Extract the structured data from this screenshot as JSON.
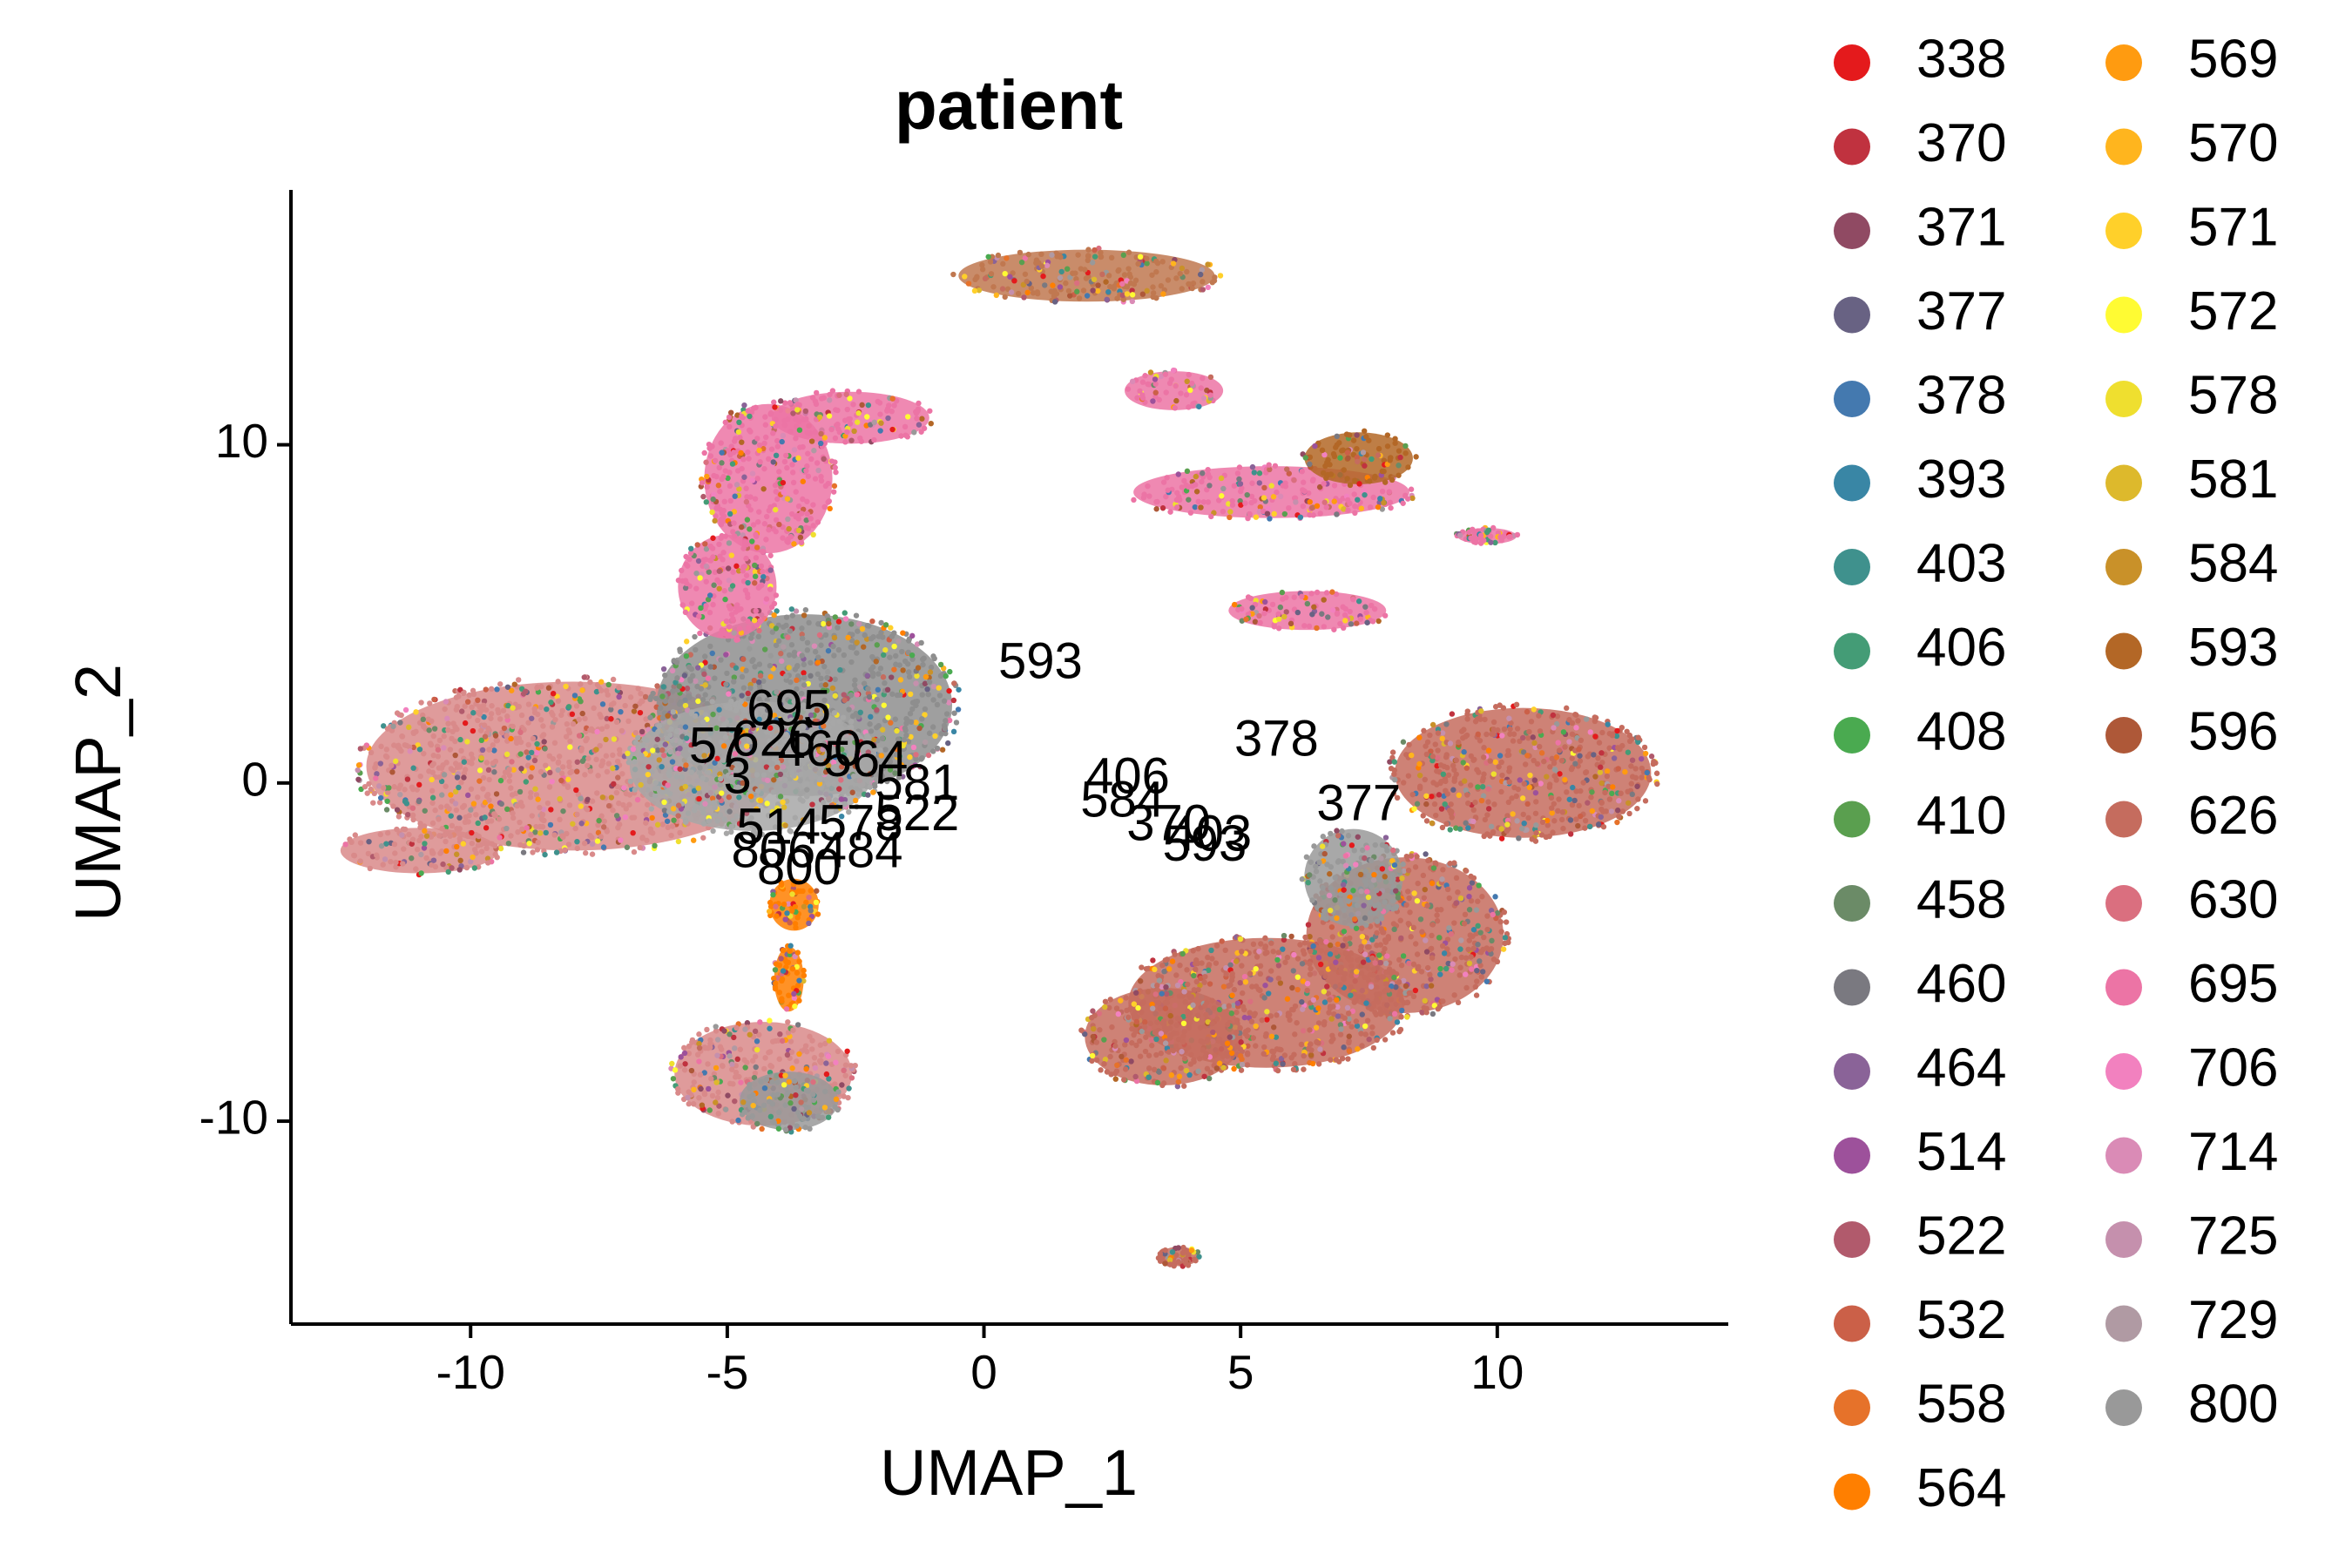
{
  "chart_data": {
    "type": "scatter",
    "title": "patient",
    "xlabel": "UMAP_1",
    "ylabel": "UMAP_2",
    "xlim": [
      -13.5,
      14.5
    ],
    "ylim": [
      -16,
      18
    ],
    "xticks": [
      -10,
      -5,
      0,
      5,
      10
    ],
    "xtick_labels": [
      "-10",
      "-5",
      "0",
      "5",
      "10"
    ],
    "yticks": [
      -10,
      0,
      10
    ],
    "ytick_labels": [
      "-10",
      "0",
      "10"
    ],
    "grid": false,
    "legend_position": "right",
    "legend_columns": 2,
    "series": [
      {
        "name": "338",
        "color": "#E41A1C"
      },
      {
        "name": "370",
        "color": "#C0323F"
      },
      {
        "name": "371",
        "color": "#904A63"
      },
      {
        "name": "377",
        "color": "#686283"
      },
      {
        "name": "378",
        "color": "#4479AF"
      },
      {
        "name": "393",
        "color": "#3986A5"
      },
      {
        "name": "403",
        "color": "#3F918D"
      },
      {
        "name": "406",
        "color": "#449C76"
      },
      {
        "name": "408",
        "color": "#4AAA50"
      },
      {
        "name": "410",
        "color": "#5A9F4F"
      },
      {
        "name": "458",
        "color": "#6B8B67"
      },
      {
        "name": "460",
        "color": "#7A7980"
      },
      {
        "name": "464",
        "color": "#8A6398"
      },
      {
        "name": "514",
        "color": "#9D519B"
      },
      {
        "name": "522",
        "color": "#B15A6C"
      },
      {
        "name": "532",
        "color": "#CB6048"
      },
      {
        "name": "558",
        "color": "#E6722A"
      },
      {
        "name": "564",
        "color": "#FF7F00"
      },
      {
        "name": "569",
        "color": "#FF9B10"
      },
      {
        "name": "570",
        "color": "#FFB51E"
      },
      {
        "name": "571",
        "color": "#FFD02A"
      },
      {
        "name": "572",
        "color": "#FFFB33"
      },
      {
        "name": "578",
        "color": "#EFDF2F"
      },
      {
        "name": "581",
        "color": "#DDB92C"
      },
      {
        "name": "584",
        "color": "#C99129"
      },
      {
        "name": "593",
        "color": "#B36726"
      },
      {
        "name": "596",
        "color": "#AE5838"
      },
      {
        "name": "626",
        "color": "#C56C5E"
      },
      {
        "name": "630",
        "color": "#DA6F7F"
      },
      {
        "name": "695",
        "color": "#EC74A5"
      },
      {
        "name": "706",
        "color": "#F281BF"
      },
      {
        "name": "714",
        "color": "#DA8BB6"
      },
      {
        "name": "725",
        "color": "#C590AD"
      },
      {
        "name": "729",
        "color": "#B09AA3"
      },
      {
        "name": "800",
        "color": "#999999"
      }
    ],
    "cluster_regions": [
      {
        "cx": -8.0,
        "cy": 0.5,
        "rx": 4.2,
        "ry": 2.6,
        "color": "#D98A8A"
      },
      {
        "cx": -11.0,
        "cy": -2.0,
        "rx": 1.6,
        "ry": 0.7,
        "color": "#D98A8A"
      },
      {
        "cx": -3.5,
        "cy": 2.3,
        "rx": 3.0,
        "ry": 2.8,
        "color": "#8E8E8E"
      },
      {
        "cx": -4.5,
        "cy": 0.5,
        "rx": 2.5,
        "ry": 2.0,
        "color": "#A7A7A7"
      },
      {
        "cx": -4.2,
        "cy": 9.0,
        "rx": 1.3,
        "ry": 2.3,
        "color": "#EC74A5"
      },
      {
        "cx": -2.6,
        "cy": 10.8,
        "rx": 1.6,
        "ry": 0.8,
        "color": "#EC74A5"
      },
      {
        "cx": -5.0,
        "cy": 5.8,
        "rx": 1.0,
        "ry": 1.6,
        "color": "#EC74A5"
      },
      {
        "cx": -3.7,
        "cy": -3.6,
        "rx": 0.5,
        "ry": 0.8,
        "color": "#FF7F00"
      },
      {
        "cx": -3.8,
        "cy": -5.8,
        "rx": 0.3,
        "ry": 1.0,
        "color": "#FF7F00"
      },
      {
        "cx": -4.3,
        "cy": -8.6,
        "rx": 1.8,
        "ry": 1.6,
        "color": "#D98A8A"
      },
      {
        "cx": -3.8,
        "cy": -9.4,
        "rx": 1.0,
        "ry": 0.9,
        "color": "#999999"
      },
      {
        "cx": 2.0,
        "cy": 15.0,
        "rx": 2.6,
        "ry": 0.8,
        "color": "#C07850"
      },
      {
        "cx": 3.7,
        "cy": 11.6,
        "rx": 1.0,
        "ry": 0.6,
        "color": "#EC74A5"
      },
      {
        "cx": 5.6,
        "cy": 8.6,
        "rx": 2.8,
        "ry": 0.8,
        "color": "#EC74A5"
      },
      {
        "cx": 7.3,
        "cy": 9.6,
        "rx": 1.1,
        "ry": 0.8,
        "color": "#B36726"
      },
      {
        "cx": 6.3,
        "cy": 5.1,
        "rx": 1.6,
        "ry": 0.6,
        "color": "#EC74A5"
      },
      {
        "cx": 9.8,
        "cy": 7.3,
        "rx": 0.6,
        "ry": 0.25,
        "color": "#EC74A5"
      },
      {
        "cx": 10.5,
        "cy": 0.3,
        "rx": 2.6,
        "ry": 2.0,
        "color": "#C56C5E"
      },
      {
        "cx": 8.2,
        "cy": -4.5,
        "rx": 2.0,
        "ry": 2.4,
        "color": "#C56C5E"
      },
      {
        "cx": 5.5,
        "cy": -6.5,
        "rx": 2.8,
        "ry": 2.0,
        "color": "#C56C5E"
      },
      {
        "cx": 3.5,
        "cy": -7.5,
        "rx": 1.6,
        "ry": 1.5,
        "color": "#C56C5E"
      },
      {
        "cx": 7.2,
        "cy": -2.8,
        "rx": 1.0,
        "ry": 1.5,
        "color": "#999999"
      },
      {
        "cx": 3.8,
        "cy": -14.0,
        "rx": 0.4,
        "ry": 0.3,
        "color": "#C56C5E"
      }
    ],
    "annotations": [
      {
        "text": "593",
        "x": 1.1,
        "y": 3.5
      },
      {
        "text": "378",
        "x": 5.7,
        "y": 1.2
      },
      {
        "text": "406",
        "x": 2.8,
        "y": 0.1
      },
      {
        "text": "584",
        "x": 2.7,
        "y": -0.6
      },
      {
        "text": "377",
        "x": 7.3,
        "y": -0.7
      },
      {
        "text": "370",
        "x": 3.6,
        "y": -1.3
      },
      {
        "text": "403",
        "x": 4.4,
        "y": -1.6
      },
      {
        "text": "593",
        "x": 4.3,
        "y": -1.9
      },
      {
        "text": "695",
        "x": -3.8,
        "y": 2.1
      },
      {
        "text": "57",
        "x": -5.2,
        "y": 1.0
      },
      {
        "text": "3",
        "x": -4.8,
        "y": 0.1
      },
      {
        "text": "626",
        "x": -4.1,
        "y": 1.2
      },
      {
        "text": "460",
        "x": -3.2,
        "y": 0.9
      },
      {
        "text": "564",
        "x": -2.3,
        "y": 0.6
      },
      {
        "text": "581",
        "x": -1.3,
        "y": -0.1
      },
      {
        "text": "522",
        "x": -1.3,
        "y": -1.0
      },
      {
        "text": "514",
        "x": -4.0,
        "y": -1.4
      },
      {
        "text": "578",
        "x": -2.4,
        "y": -1.3
      },
      {
        "text": "806",
        "x": -4.1,
        "y": -2.1
      },
      {
        "text": "484",
        "x": -2.4,
        "y": -2.1
      },
      {
        "text": "800",
        "x": -3.6,
        "y": -2.6
      }
    ]
  }
}
